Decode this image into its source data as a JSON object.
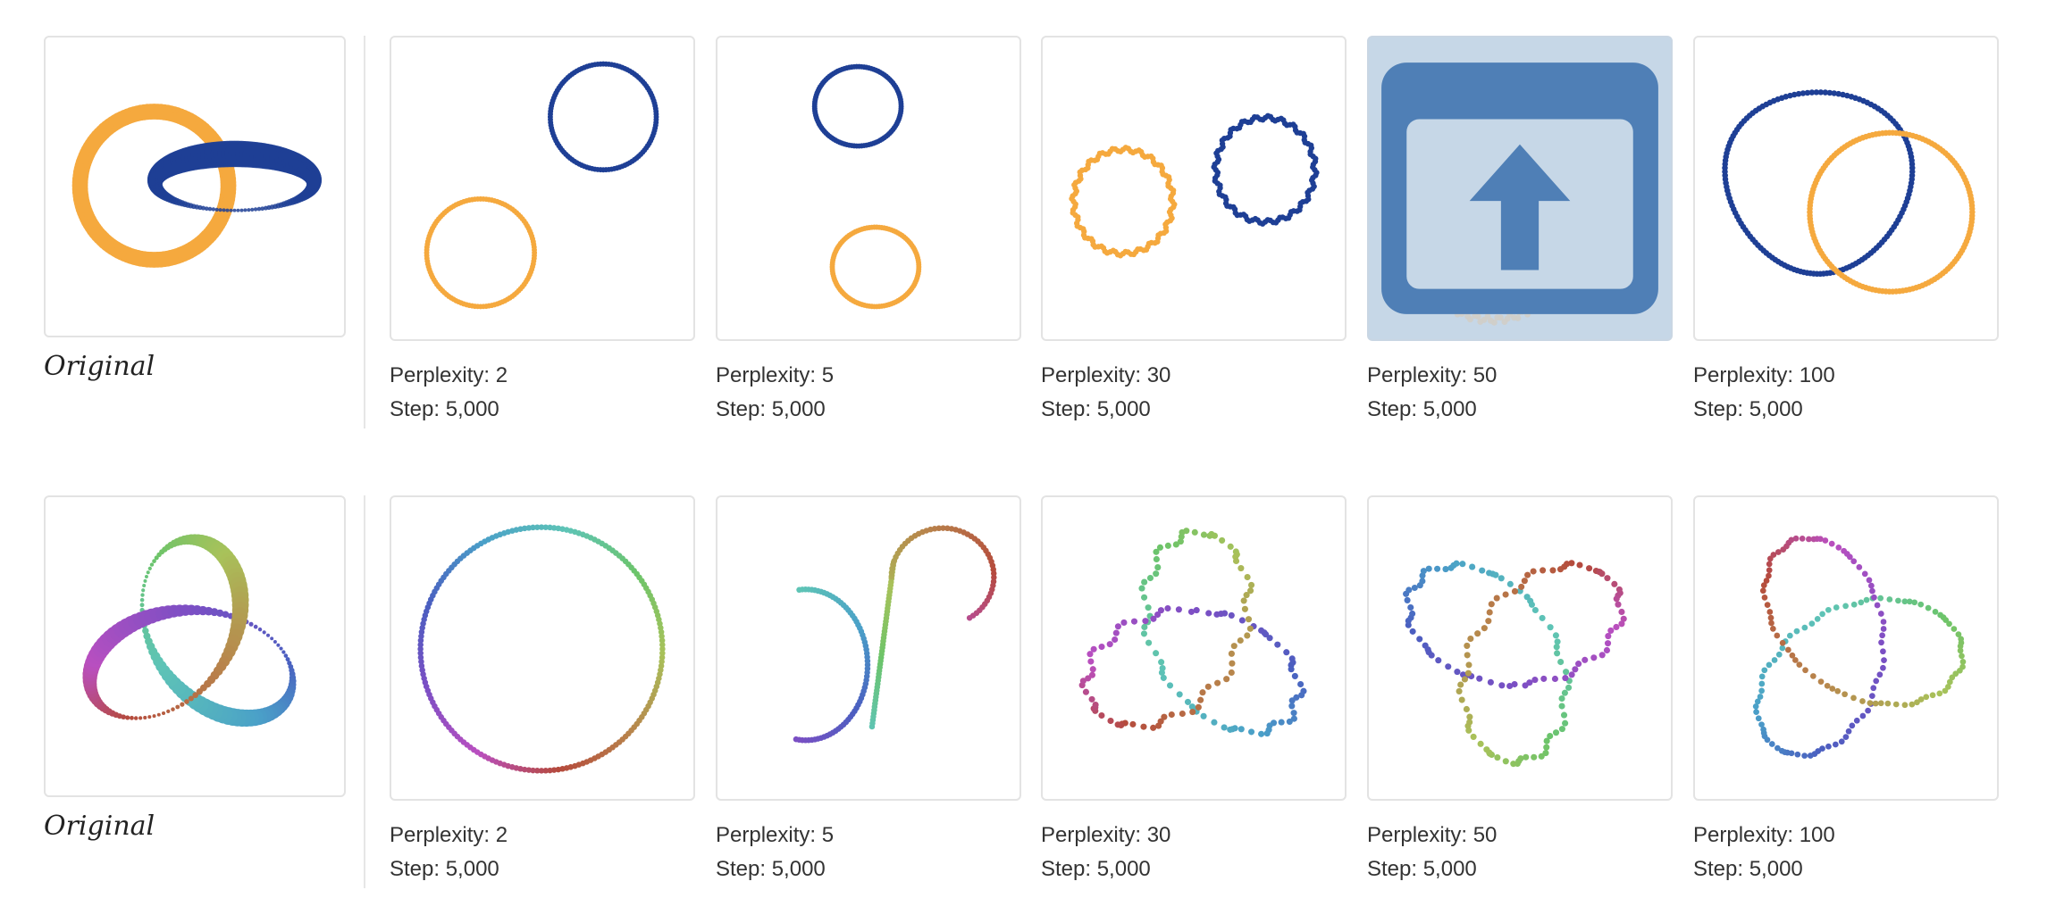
{
  "colors": {
    "orange": "#f5a93e",
    "navy": "#1e3f95",
    "selected_bg": "#c6d7e7",
    "icon_blue": "#4f7fb6"
  },
  "rows": [
    {
      "original_label": "Original",
      "panels": [
        {
          "perplexity": "Perplexity: 2",
          "step": "Step: 5,000"
        },
        {
          "perplexity": "Perplexity: 5",
          "step": "Step: 5,000"
        },
        {
          "perplexity": "Perplexity: 30",
          "step": "Step: 5,000"
        },
        {
          "perplexity": "Perplexity: 50",
          "step": "Step: 5,000",
          "selected": true,
          "overlay_icon": "open-external-icon"
        },
        {
          "perplexity": "Perplexity: 100",
          "step": "Step: 5,000"
        }
      ]
    },
    {
      "original_label": "Original",
      "panels": [
        {
          "perplexity": "Perplexity: 2",
          "step": "Step: 5,000"
        },
        {
          "perplexity": "Perplexity: 5",
          "step": "Step: 5,000"
        },
        {
          "perplexity": "Perplexity: 30",
          "step": "Step: 5,000"
        },
        {
          "perplexity": "Perplexity: 50",
          "step": "Step: 5,000"
        },
        {
          "perplexity": "Perplexity: 100",
          "step": "Step: 5,000"
        }
      ]
    }
  ]
}
